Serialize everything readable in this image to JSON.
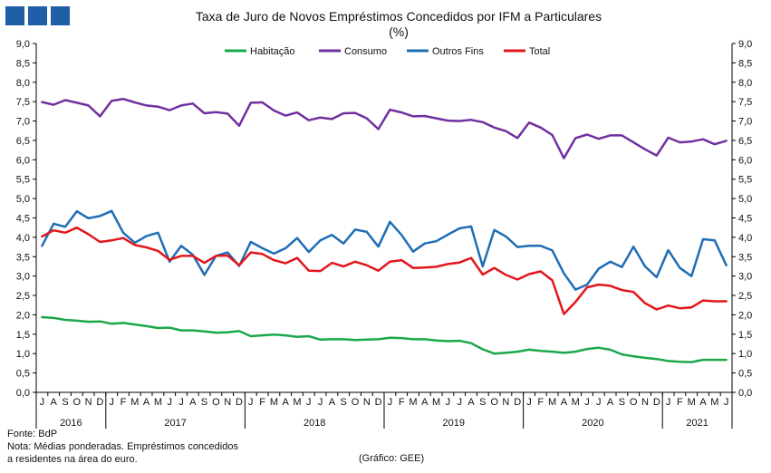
{
  "header": {
    "title_line1": "Taxa de Juro de Novos Empréstimos  Concedidos por IFM a Particulares",
    "title_line2": "(%)"
  },
  "footer": {
    "source": "Fonte: BdP",
    "note_line1": "Nota: Médias ponderadas. Empréstimos concedidos",
    "note_line2": "a residentes na área do euro.",
    "credit": "(Gráfico: GEE)"
  },
  "colors": {
    "logo": "#1f5fa8",
    "Habitação": "#1aa84a",
    "Consumo": "#7030a0",
    "Outros Fins": "#1f6db5",
    "Total": "#e3161b"
  },
  "chart_data": {
    "type": "line",
    "title": "Taxa de Juro de Novos Empréstimos  Concedidos por IFM a Particulares (%)",
    "xlabel": "",
    "ylabel": "%",
    "ylim": [
      0,
      9
    ],
    "yticks": [
      "0,0",
      "0,5",
      "1,0",
      "1,5",
      "2,0",
      "2,5",
      "3,0",
      "3,5",
      "4,0",
      "4,5",
      "5,0",
      "5,5",
      "6,0",
      "6,5",
      "7,0",
      "7,5",
      "8,0",
      "8,5",
      "9,0"
    ],
    "grid": false,
    "legend": "top-center",
    "x": [
      "J",
      "A",
      "S",
      "O",
      "N",
      "D",
      "J",
      "F",
      "M",
      "A",
      "M",
      "J",
      "J",
      "A",
      "S",
      "O",
      "N",
      "D",
      "J",
      "F",
      "M",
      "A",
      "M",
      "J",
      "J",
      "A",
      "S",
      "O",
      "N",
      "D",
      "J",
      "F",
      "M",
      "A",
      "M",
      "J",
      "J",
      "A",
      "S",
      "O",
      "N",
      "D",
      "J",
      "F",
      "M",
      "A",
      "M",
      "J",
      "J",
      "A",
      "S",
      "O",
      "N",
      "D",
      "J",
      "F",
      "M",
      "A",
      "M",
      "J"
    ],
    "years": [
      {
        "label": "2016",
        "start": 0,
        "count": 6
      },
      {
        "label": "2017",
        "start": 6,
        "count": 12
      },
      {
        "label": "2018",
        "start": 18,
        "count": 12
      },
      {
        "label": "2019",
        "start": 30,
        "count": 12
      },
      {
        "label": "2020",
        "start": 42,
        "count": 12
      },
      {
        "label": "2021",
        "start": 54,
        "count": 6
      }
    ],
    "series": [
      {
        "name": "Habitação",
        "values": [
          1.94,
          1.92,
          1.87,
          1.85,
          1.82,
          1.83,
          1.77,
          1.79,
          1.75,
          1.71,
          1.66,
          1.67,
          1.6,
          1.6,
          1.57,
          1.54,
          1.55,
          1.58,
          1.45,
          1.47,
          1.49,
          1.47,
          1.43,
          1.45,
          1.36,
          1.37,
          1.37,
          1.35,
          1.36,
          1.37,
          1.41,
          1.4,
          1.37,
          1.37,
          1.34,
          1.32,
          1.33,
          1.27,
          1.11,
          1.0,
          1.02,
          1.05,
          1.1,
          1.07,
          1.05,
          1.02,
          1.05,
          1.12,
          1.15,
          1.1,
          0.98,
          0.93,
          0.89,
          0.86,
          0.81,
          0.79,
          0.78,
          0.84,
          0.84,
          0.84
        ]
      },
      {
        "name": "Consumo",
        "values": [
          7.49,
          7.42,
          7.54,
          7.47,
          7.4,
          7.12,
          7.52,
          7.57,
          7.48,
          7.4,
          7.37,
          7.28,
          7.4,
          7.45,
          7.2,
          7.23,
          7.19,
          6.88,
          7.47,
          7.48,
          7.27,
          7.14,
          7.22,
          7.02,
          7.09,
          7.05,
          7.2,
          7.21,
          7.07,
          6.79,
          7.29,
          7.22,
          7.12,
          7.13,
          7.07,
          7.01,
          7.0,
          7.03,
          6.97,
          6.83,
          6.74,
          6.56,
          6.96,
          6.83,
          6.64,
          6.04,
          6.56,
          6.65,
          6.54,
          6.63,
          6.63,
          6.45,
          6.27,
          6.11,
          6.57,
          6.45,
          6.47,
          6.53,
          6.4,
          6.49
        ]
      },
      {
        "name": "Outros Fins",
        "values": [
          3.78,
          4.35,
          4.27,
          4.67,
          4.49,
          4.55,
          4.68,
          4.12,
          3.86,
          4.03,
          4.12,
          3.37,
          3.78,
          3.55,
          3.03,
          3.52,
          3.61,
          3.26,
          3.88,
          3.72,
          3.58,
          3.72,
          3.98,
          3.62,
          3.92,
          4.06,
          3.84,
          4.2,
          4.14,
          3.76,
          4.4,
          4.06,
          3.63,
          3.84,
          3.9,
          4.07,
          4.23,
          4.28,
          3.25,
          4.19,
          4.02,
          3.75,
          3.78,
          3.78,
          3.66,
          3.07,
          2.65,
          2.78,
          3.19,
          3.37,
          3.23,
          3.76,
          3.25,
          2.97,
          3.67,
          3.21,
          3.0,
          3.95,
          3.92,
          3.28
        ]
      },
      {
        "name": "Total",
        "values": [
          4.02,
          4.18,
          4.12,
          4.25,
          4.08,
          3.88,
          3.92,
          3.98,
          3.8,
          3.74,
          3.65,
          3.42,
          3.52,
          3.52,
          3.34,
          3.52,
          3.53,
          3.28,
          3.61,
          3.57,
          3.41,
          3.33,
          3.47,
          3.14,
          3.13,
          3.34,
          3.25,
          3.37,
          3.28,
          3.14,
          3.37,
          3.41,
          3.21,
          3.22,
          3.24,
          3.31,
          3.35,
          3.47,
          3.04,
          3.21,
          3.03,
          2.91,
          3.05,
          3.12,
          2.89,
          2.02,
          2.33,
          2.71,
          2.78,
          2.75,
          2.64,
          2.59,
          2.3,
          2.14,
          2.24,
          2.17,
          2.19,
          2.37,
          2.35,
          2.35
        ]
      }
    ]
  }
}
